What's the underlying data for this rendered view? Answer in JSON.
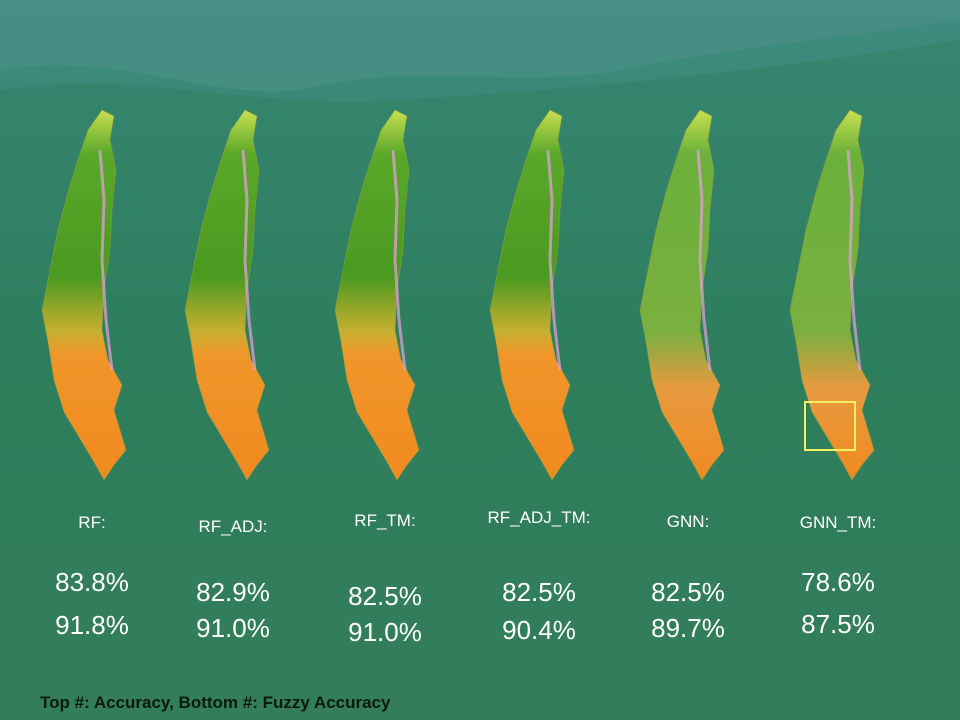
{
  "models": [
    {
      "name": "RF:",
      "accuracy": "83.8%",
      "fuzzy_accuracy": "91.8%"
    },
    {
      "name": "RF_ADJ:",
      "accuracy": "82.9%",
      "fuzzy_accuracy": "91.0%"
    },
    {
      "name": "RF_TM:",
      "accuracy": "82.5%",
      "fuzzy_accuracy": "91.0%"
    },
    {
      "name": "RF_ADJ_TM:",
      "accuracy": "82.5%",
      "fuzzy_accuracy": "90.4%"
    },
    {
      "name": "GNN:",
      "accuracy": "82.5%",
      "fuzzy_accuracy": "89.7%"
    },
    {
      "name": "GNN_TM:",
      "accuracy": "78.6%",
      "fuzzy_accuracy": "87.5%"
    }
  ],
  "footer": "Top #: Accuracy,  Bottom #: Fuzzy Accuracy"
}
